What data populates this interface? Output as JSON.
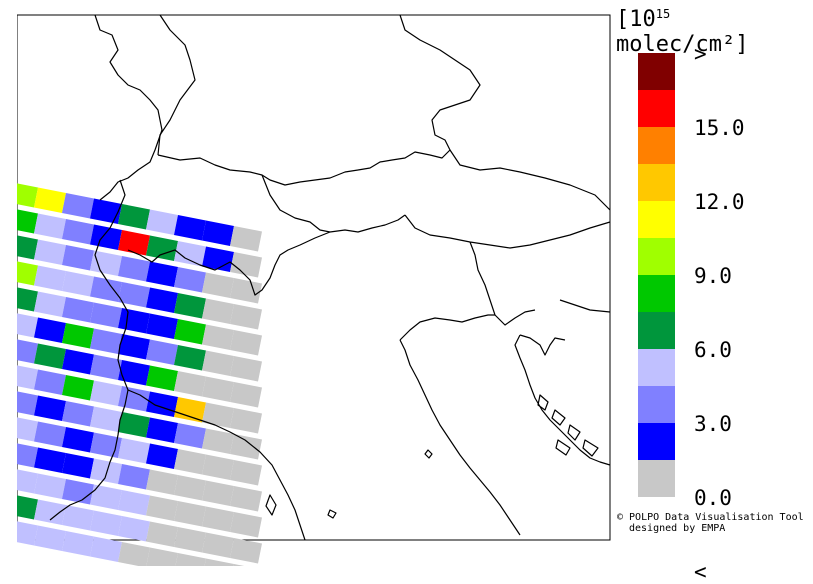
{
  "colorbar": {
    "unit_base": "10",
    "unit_exp": "15",
    "unit_rest": " molec/cm²",
    "colors": [
      "#800000",
      "#ff0000",
      "#ff8000",
      "#ffc800",
      "#ffff00",
      "#a0ff00",
      "#00c800",
      "#00963c",
      "#c0c0ff",
      "#8080ff",
      "#0000ff",
      "#c8c8c8"
    ],
    "labels": [
      ">",
      "15.0",
      "12.0",
      "9.0",
      "6.0",
      "3.0",
      "0.0",
      "<"
    ]
  },
  "credit": {
    "line1": "© POLPO Data Visualisation Tool",
    "line2": "designed by EMPA"
  }
}
